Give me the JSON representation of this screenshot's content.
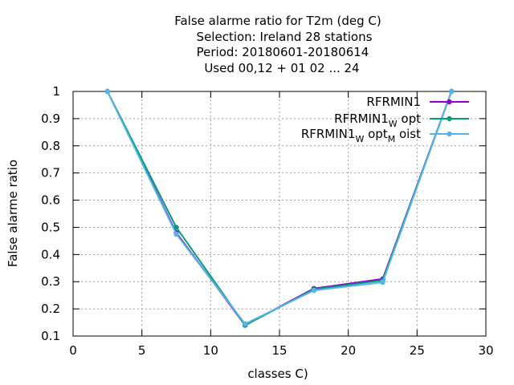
{
  "chart_data": {
    "type": "line",
    "title_lines": [
      "False alarme ratio  for T2m (deg C)",
      "Selection: Ireland      28 stations",
      "Period: 20180601-20180614",
      "Used  00,12  + 01 02 ... 24"
    ],
    "xlabel": "classes C)",
    "ylabel": "False alarme ratio",
    "xlim": [
      0,
      30
    ],
    "ylim": [
      0.1,
      1.0
    ],
    "xticks": [
      0,
      5,
      10,
      15,
      20,
      25,
      30
    ],
    "yticks": [
      0.1,
      0.2,
      0.3,
      0.4,
      0.5,
      0.6,
      0.7,
      0.8,
      0.9,
      1.0
    ],
    "ytick_labels": [
      "0.1",
      "0.2",
      "0.3",
      "0.4",
      "0.5",
      "0.6",
      "0.7",
      "0.8",
      "0.9",
      "1"
    ],
    "grid": true,
    "legend_position": "top-right",
    "x": [
      2.5,
      7.5,
      12.5,
      17.5,
      22.5,
      27.5
    ],
    "series": [
      {
        "name": "RFRMIN1",
        "name_base": "RFRMIN1",
        "name_parts": [],
        "color": "#9400d3",
        "values": [
          1.0,
          0.48,
          0.14,
          0.275,
          0.31,
          1.0
        ]
      },
      {
        "name": "RFRMIN1_W opt",
        "name_base": "RFRMIN1",
        "name_parts": [
          [
            "W",
            "opt"
          ]
        ],
        "color": "#009e73",
        "values": [
          1.0,
          0.5,
          0.14,
          0.272,
          0.305,
          1.0
        ]
      },
      {
        "name": "RFRMIN1_W opt_M oist",
        "name_base": "RFRMIN1",
        "name_parts": [
          [
            "W",
            "opt"
          ],
          [
            "M",
            "oist"
          ]
        ],
        "color": "#56b4e9",
        "values": [
          1.0,
          0.475,
          0.145,
          0.268,
          0.298,
          1.0
        ]
      }
    ]
  }
}
